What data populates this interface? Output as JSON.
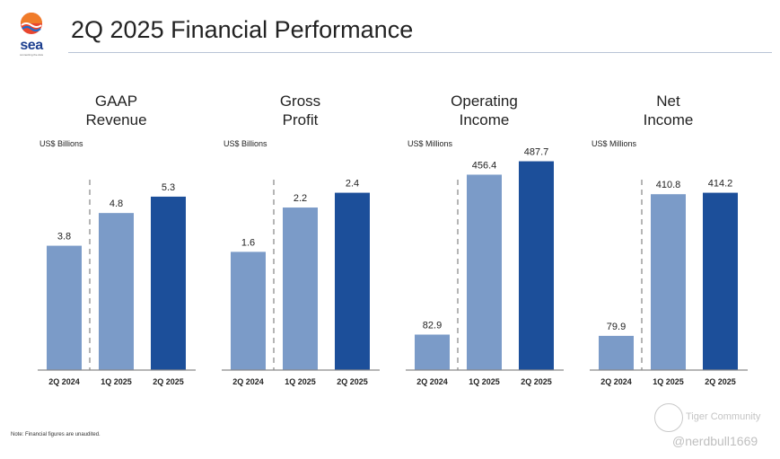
{
  "brand": {
    "logo_text": "sea",
    "tagline": "connecting the dots"
  },
  "header": {
    "title": "2Q 2025 Financial Performance"
  },
  "colors": {
    "light_bar": "#7b9bc8",
    "dark_bar": "#1c4f9a",
    "axis": "#8a8a8a",
    "divider": "#b5b5b5"
  },
  "chart_data": [
    {
      "type": "bar",
      "title_lines": [
        "GAAP",
        "Revenue"
      ],
      "unit": "US$ Billions",
      "categories": [
        "2Q 2024",
        "1Q 2025",
        "2Q 2025"
      ],
      "values": [
        3.8,
        4.8,
        5.3
      ],
      "labels": [
        "3.8",
        "4.8",
        "5.3"
      ],
      "ylim": [
        0,
        7.0
      ]
    },
    {
      "type": "bar",
      "title_lines": [
        "Gross",
        "Profit"
      ],
      "unit": "US$ Billions",
      "categories": [
        "2Q 2024",
        "1Q 2025",
        "2Q 2025"
      ],
      "values": [
        1.6,
        2.2,
        2.4
      ],
      "labels": [
        "1.6",
        "2.2",
        "2.4"
      ],
      "ylim": [
        0,
        3.1
      ]
    },
    {
      "type": "bar",
      "title_lines": [
        "Operating",
        "Income"
      ],
      "unit": "US$ Millions",
      "categories": [
        "2Q 2024",
        "1Q 2025",
        "2Q 2025"
      ],
      "values": [
        82.9,
        456.4,
        487.7
      ],
      "labels": [
        "82.9",
        "456.4",
        "487.7"
      ],
      "ylim": [
        0,
        535
      ]
    },
    {
      "type": "bar",
      "title_lines": [
        "Net",
        "Income"
      ],
      "unit": "US$ Millions",
      "categories": [
        "2Q 2024",
        "1Q 2025",
        "2Q 2025"
      ],
      "values": [
        79.9,
        410.8,
        414.2
      ],
      "labels": [
        "79.9",
        "410.8",
        "414.2"
      ],
      "ylim": [
        0,
        535
      ]
    }
  ],
  "footnote": "Note: Financial figures are unaudited.",
  "watermark": {
    "brand": "Tiger Community",
    "user": "@nerdbull1669"
  }
}
